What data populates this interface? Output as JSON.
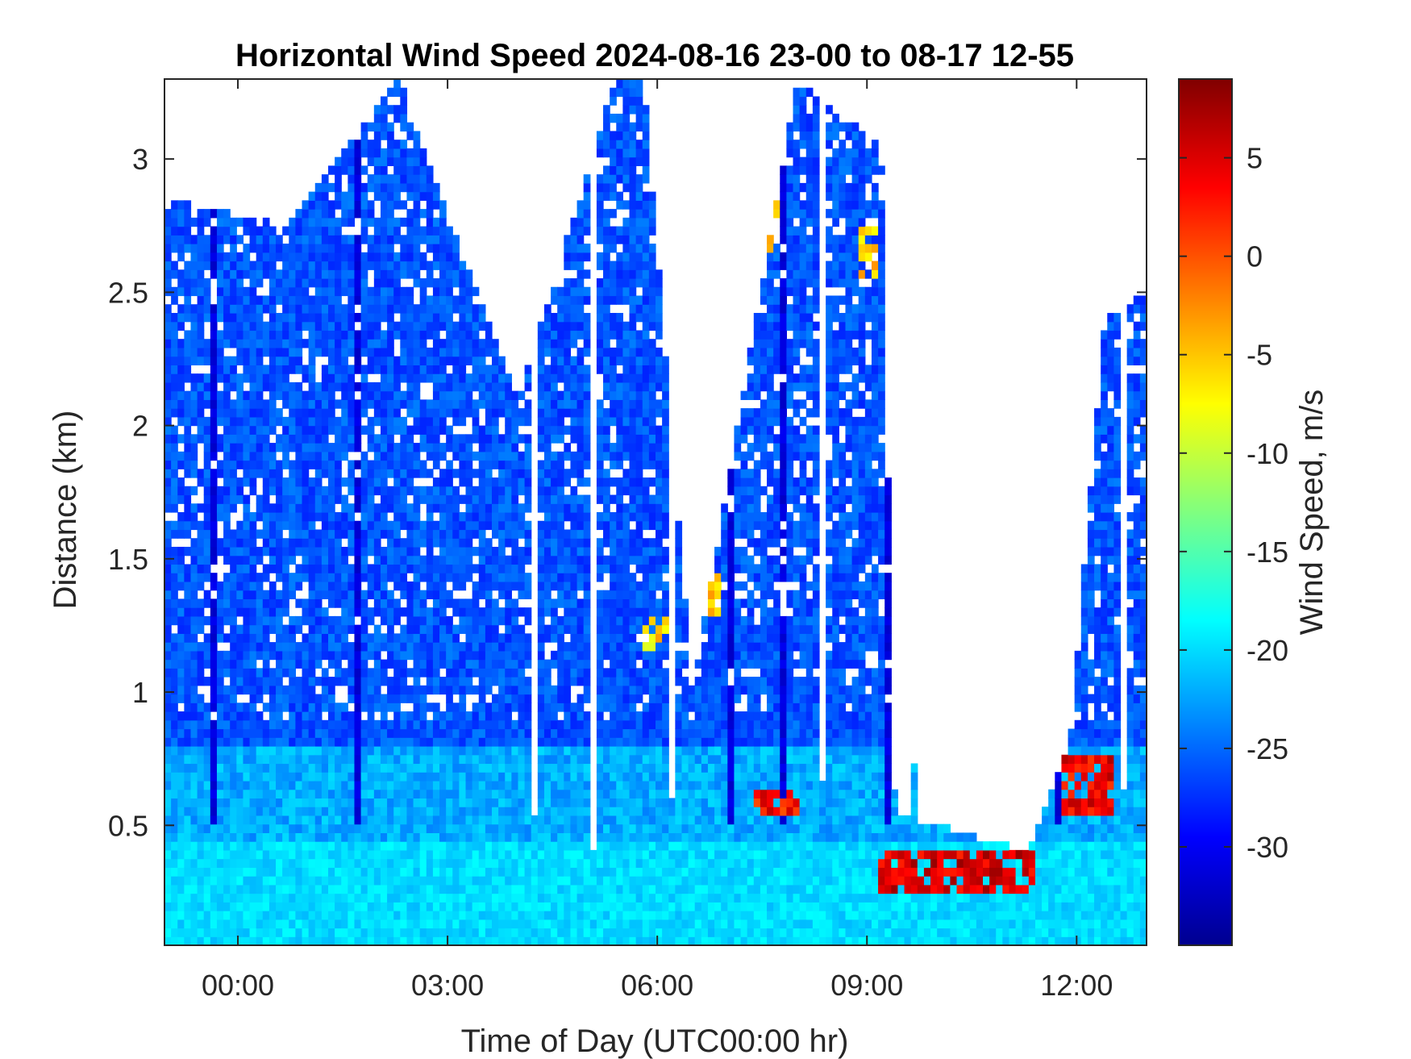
{
  "chart_data": {
    "type": "heatmap",
    "title": "Horizontal Wind Speed 2024-08-16 23-00 to 08-17 12-55",
    "xlabel": "Time of Day (UTC00:00 hr)",
    "ylabel": "Distance (km)",
    "colorbar_label": "Wind Speed, m/s",
    "colormap": "jet",
    "missing_color": "#ffffff",
    "x_unit": "hours since 00:00 UTC 2024-08-17",
    "xlim": [
      -1.05,
      13.0
    ],
    "ylim": [
      0.05,
      3.3
    ],
    "clim": [
      -35,
      9
    ],
    "x_ticks": [
      {
        "value": 0,
        "label": "00:00"
      },
      {
        "value": 3,
        "label": "03:00"
      },
      {
        "value": 6,
        "label": "06:00"
      },
      {
        "value": 9,
        "label": "09:00"
      },
      {
        "value": 12,
        "label": "12:00"
      }
    ],
    "y_ticks": [
      {
        "value": 0.5,
        "label": "0.5"
      },
      {
        "value": 1,
        "label": "1"
      },
      {
        "value": 1.5,
        "label": "1.5"
      },
      {
        "value": 2,
        "label": "2"
      },
      {
        "value": 2.5,
        "label": "2.5"
      },
      {
        "value": 3,
        "label": "3"
      }
    ],
    "colorbar_ticks": [
      {
        "value": 5,
        "label": "5"
      },
      {
        "value": 0,
        "label": "0"
      },
      {
        "value": -5,
        "label": "-5"
      },
      {
        "value": -10,
        "label": "-10"
      },
      {
        "value": -15,
        "label": "-15"
      },
      {
        "value": -20,
        "label": "-20"
      },
      {
        "value": -25,
        "label": "-25"
      },
      {
        "value": -30,
        "label": "-30"
      }
    ],
    "grid": false,
    "approximate_field": {
      "near_surface_speed_below_0.5km": -20,
      "upper_level_typical_speed": -26,
      "strong_core_speed": -32,
      "data_top_km": [
        {
          "x": -1.05,
          "km": 2.85
        },
        {
          "x": 0.7,
          "km": 2.75
        },
        {
          "x": 2.3,
          "km": 3.3
        },
        {
          "x": 4.0,
          "km": 2.1
        },
        {
          "x": 5.4,
          "km": 3.3
        },
        {
          "x": 5.8,
          "km": 3.3
        },
        {
          "x": 6.5,
          "km": 1.0
        },
        {
          "x": 8.0,
          "km": 3.3
        },
        {
          "x": 9.2,
          "km": 3.05
        },
        {
          "x": 9.4,
          "km": 0.55
        },
        {
          "x": 11.3,
          "km": 0.4
        },
        {
          "x": 11.9,
          "km": 0.8
        },
        {
          "x": 12.4,
          "km": 2.4
        },
        {
          "x": 13.0,
          "km": 2.5
        }
      ],
      "positive_speed_patches": [
        {
          "x": [
            5.8,
            6.3
          ],
          "km": [
            1.15,
            1.3
          ],
          "value": -6
        },
        {
          "x": [
            6.6,
            6.9
          ],
          "km": [
            1.3,
            1.45
          ],
          "value": -6
        },
        {
          "x": [
            7.5,
            7.8
          ],
          "km": [
            2.65,
            2.85
          ],
          "value": -3
        },
        {
          "x": [
            8.9,
            9.2
          ],
          "km": [
            2.55,
            2.75
          ],
          "value": -5
        },
        {
          "x": [
            9.2,
            11.4
          ],
          "km": [
            0.25,
            0.4
          ],
          "value": 5
        },
        {
          "x": [
            11.8,
            12.5
          ],
          "km": [
            0.55,
            0.75
          ],
          "value": 4
        },
        {
          "x": [
            7.4,
            8.0
          ],
          "km": [
            0.55,
            0.65
          ],
          "value": 3
        }
      ]
    }
  }
}
